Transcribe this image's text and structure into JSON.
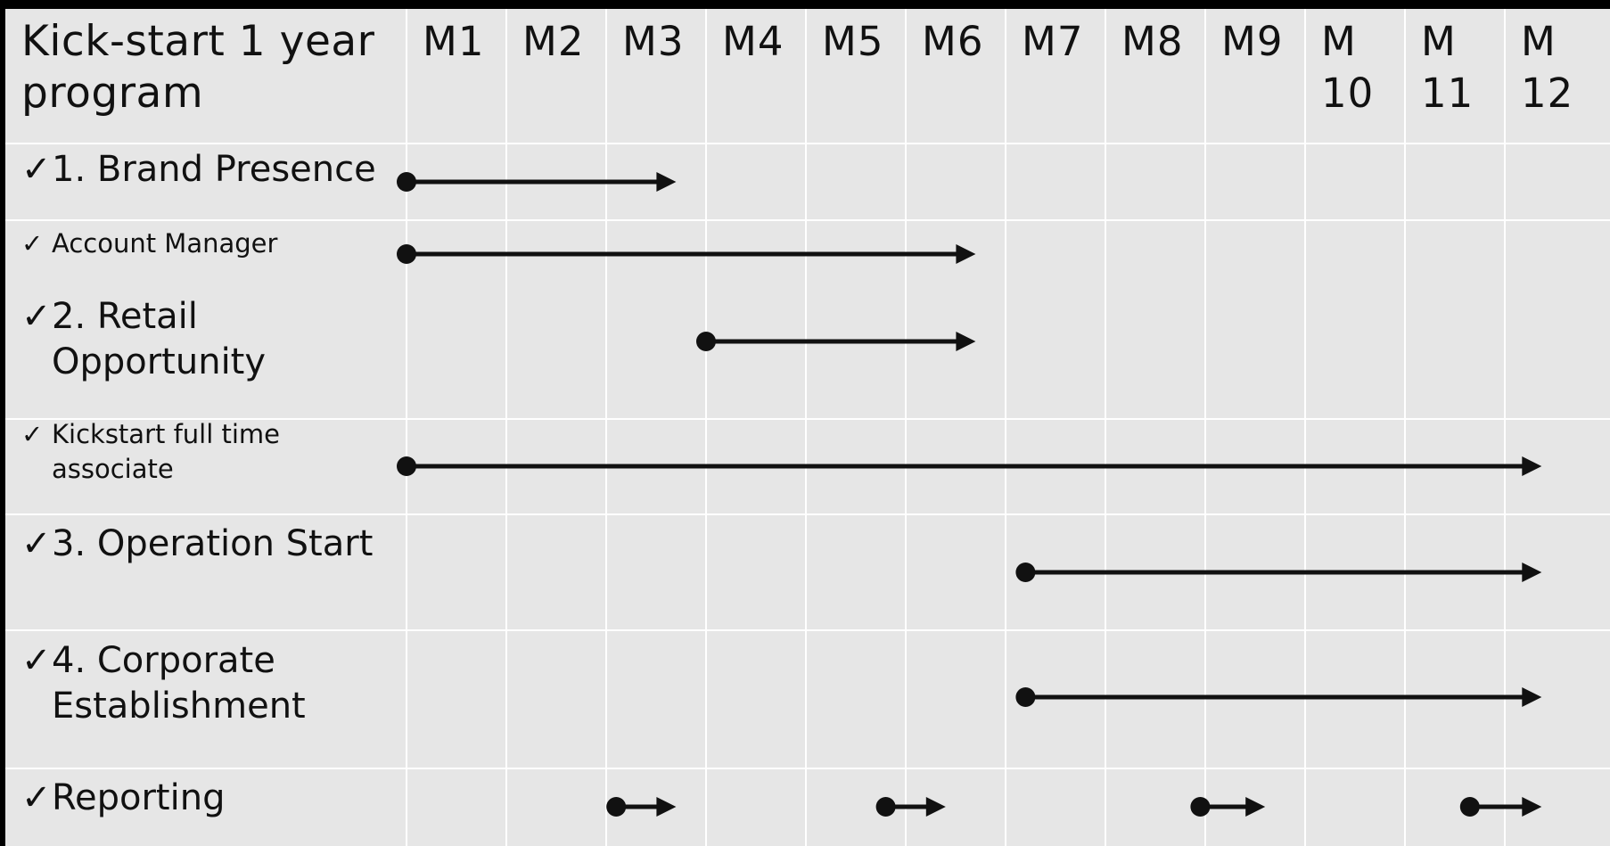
{
  "title": "Kick-start 1 year program",
  "months": [
    "M1",
    "M2",
    "M3",
    "M4",
    "M5",
    "M6",
    "M7",
    "M8",
    "M9",
    "M10",
    "M11",
    "M12"
  ],
  "month_labels": [
    {
      "line1": "M1",
      "line2": ""
    },
    {
      "line1": "M2",
      "line2": ""
    },
    {
      "line1": "M3",
      "line2": ""
    },
    {
      "line1": "M4",
      "line2": ""
    },
    {
      "line1": "M5",
      "line2": ""
    },
    {
      "line1": "M6",
      "line2": ""
    },
    {
      "line1": "M7",
      "line2": ""
    },
    {
      "line1": "M8",
      "line2": ""
    },
    {
      "line1": "M9",
      "line2": ""
    },
    {
      "line1": "M",
      "line2": "10"
    },
    {
      "line1": "M",
      "line2": "11"
    },
    {
      "line1": "M",
      "line2": "12"
    }
  ],
  "check_glyph": "✓",
  "rows": [
    {
      "label_line1": "1. Brand Presence",
      "label_line2": "",
      "size": "big",
      "arrows": [
        {
          "start_month": 1.0,
          "end_month": 3.7
        }
      ]
    },
    {
      "label_line1": "Account Manager",
      "label_line2": "",
      "size": "small",
      "arrows": [
        {
          "start_month": 1.0,
          "end_month": 6.7
        }
      ]
    },
    {
      "label_line1": "2. Retail",
      "label_line2": "Opportunity",
      "size": "big",
      "arrows": [
        {
          "start_month": 4.0,
          "end_month": 6.7
        }
      ]
    },
    {
      "label_line1": "Kickstart full time",
      "label_line2": "associate",
      "size": "small",
      "arrows": [
        {
          "start_month": 1.0,
          "end_month": 12.35
        }
      ]
    },
    {
      "label_line1": "3. Operation Start",
      "label_line2": "",
      "size": "big",
      "arrows": [
        {
          "start_month": 7.2,
          "end_month": 12.35
        }
      ]
    },
    {
      "label_line1": "4. Corporate",
      "label_line2": "Establishment",
      "size": "big",
      "arrows": [
        {
          "start_month": 7.2,
          "end_month": 12.35
        }
      ]
    },
    {
      "label_line1": "Reporting",
      "label_line2": "",
      "size": "big",
      "arrows": [
        {
          "start_month": 3.1,
          "end_month": 3.7
        },
        {
          "start_month": 5.8,
          "end_month": 6.4
        },
        {
          "start_month": 8.95,
          "end_month": 9.6
        },
        {
          "start_month": 11.65,
          "end_month": 12.35
        }
      ]
    }
  ],
  "colors": {
    "background": "#e6e6e6",
    "grid": "#ffffff",
    "ink": "#111111",
    "frame": "#000000"
  }
}
